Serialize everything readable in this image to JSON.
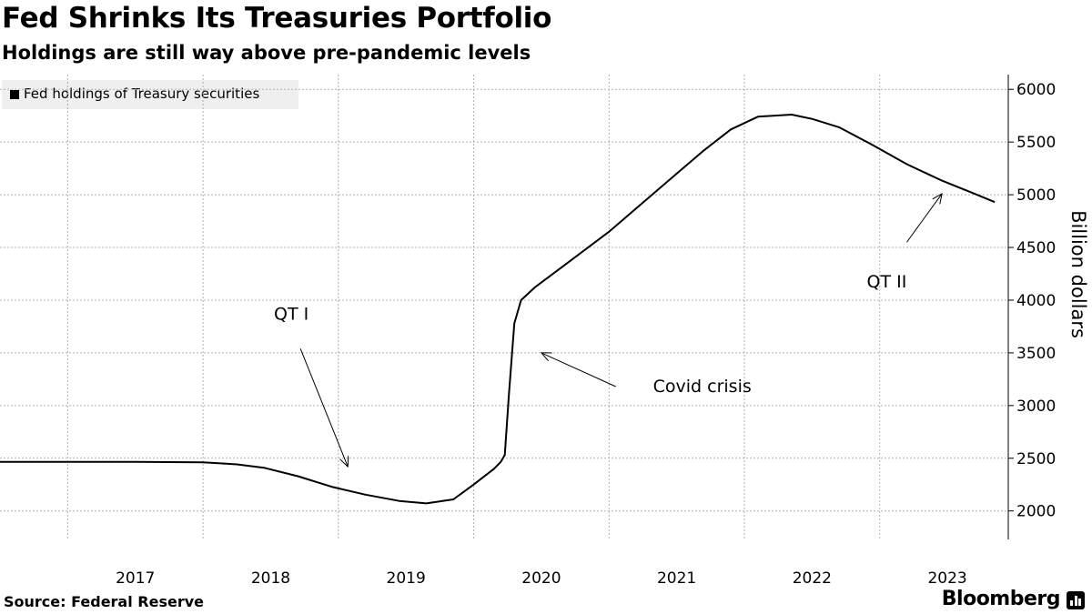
{
  "chart_data": {
    "type": "line",
    "title": "Fed Shrinks Its Treasuries Portfolio",
    "subtitle": "Holdings are still way above pre-pandemic levels",
    "ylabel": "Billion dollars",
    "xlabel": "",
    "ylim": [
      1730,
      6140
    ],
    "yticks": [
      2000,
      2500,
      3000,
      3500,
      4000,
      4500,
      5000,
      5500,
      6000
    ],
    "xlim": [
      2016.0,
      2023.45
    ],
    "xticks": [
      {
        "label": "2017",
        "x": 2017
      },
      {
        "label": "2018",
        "x": 2018
      },
      {
        "label": "2019",
        "x": 2019
      },
      {
        "label": "2020",
        "x": 2020
      },
      {
        "label": "2021",
        "x": 2021
      },
      {
        "label": "2022",
        "x": 2022
      },
      {
        "label": "2023",
        "x": 2023
      }
    ],
    "legend": "top-left",
    "grid": true,
    "series": [
      {
        "name": "Fed holdings of Treasury securities",
        "x": [
          2016.0,
          2016.4,
          2017.0,
          2017.5,
          2017.75,
          2017.95,
          2018.2,
          2018.45,
          2018.7,
          2018.95,
          2019.15,
          2019.35,
          2019.5,
          2019.65,
          2019.7,
          2019.73,
          2019.76,
          2019.8,
          2019.85,
          2019.95,
          2020.2,
          2020.5,
          2020.8,
          2021.0,
          2021.2,
          2021.4,
          2021.6,
          2021.85,
          2022.0,
          2022.2,
          2022.45,
          2022.7,
          2022.95,
          2023.2,
          2023.35
        ],
        "values": [
          2465,
          2465,
          2465,
          2462,
          2442,
          2410,
          2330,
          2230,
          2155,
          2095,
          2072,
          2110,
          2250,
          2400,
          2465,
          2530,
          3100,
          3780,
          4000,
          4120,
          4360,
          4650,
          4980,
          5200,
          5420,
          5620,
          5740,
          5760,
          5720,
          5640,
          5470,
          5290,
          5140,
          5010,
          4930
        ]
      }
    ],
    "annotations": [
      {
        "text": "QT I",
        "arrow_from": [
          2018.22,
          3540
        ],
        "arrow_to": [
          2018.57,
          2420
        ]
      },
      {
        "text": "Covid crisis",
        "arrow_from": [
          2020.55,
          3180
        ],
        "arrow_to": [
          2020.0,
          3500
        ]
      },
      {
        "text": "QT II",
        "arrow_from": [
          2022.7,
          4550
        ],
        "arrow_to": [
          2022.96,
          5010
        ]
      }
    ]
  },
  "source": "Source: Federal Reserve",
  "brand": "Bloomberg",
  "colors": {
    "line": "#000000",
    "grid": "#b0b0b0",
    "legend_bg": "#efefef"
  }
}
